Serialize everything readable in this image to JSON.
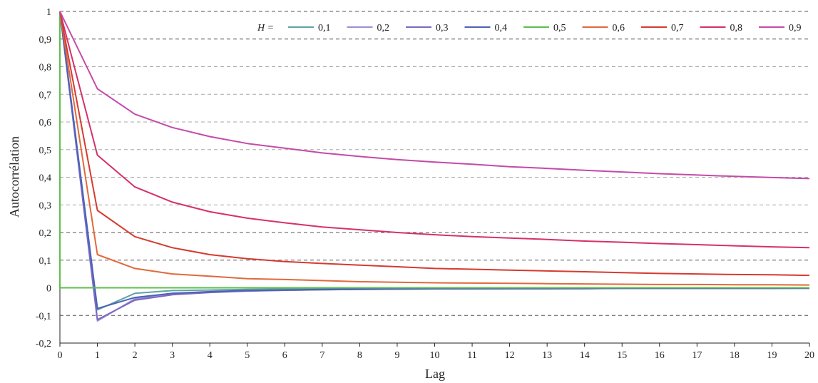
{
  "chart_data": {
    "type": "line",
    "title": "",
    "xlabel": "Lag",
    "ylabel": "Autocorrélation",
    "xlim": [
      0,
      20
    ],
    "ylim": [
      -0.2,
      1
    ],
    "x_ticks": [
      "0",
      "1",
      "2",
      "3",
      "4",
      "5",
      "6",
      "7",
      "8",
      "9",
      "10",
      "11",
      "12",
      "13",
      "14",
      "15",
      "16",
      "17",
      "18",
      "19",
      "20"
    ],
    "y_ticks": [
      "-0,2",
      "-0,1",
      "0",
      "0,1",
      "0,2",
      "0,3",
      "0,4",
      "0,5",
      "0,6",
      "0,7",
      "0,8",
      "0,9",
      "1"
    ],
    "grid": "horizontal dashed",
    "legend_position": "top-right",
    "legend_prefix": "H =",
    "x": [
      0,
      1,
      2,
      3,
      4,
      5,
      6,
      7,
      8,
      9,
      10,
      11,
      12,
      13,
      14,
      15,
      16,
      17,
      18,
      19,
      20
    ],
    "series": [
      {
        "name": "0,1",
        "color": "#5fa3a0",
        "values": [
          1,
          -0.08,
          -0.02,
          -0.01,
          -0.008,
          -0.006,
          -0.005,
          -0.004,
          -0.003,
          -0.003,
          -0.002,
          -0.002,
          -0.002,
          -0.002,
          -0.001,
          -0.001,
          -0.001,
          -0.001,
          -0.001,
          -0.001,
          -0.001
        ]
      },
      {
        "name": "0,2",
        "color": "#9b8fd6",
        "values": [
          1,
          -0.12,
          -0.04,
          -0.02,
          -0.015,
          -0.011,
          -0.009,
          -0.007,
          -0.006,
          -0.005,
          -0.004,
          -0.004,
          -0.003,
          -0.003,
          -0.003,
          -0.002,
          -0.002,
          -0.002,
          -0.002,
          -0.002,
          -0.002
        ]
      },
      {
        "name": "0,3",
        "color": "#7d68c2",
        "values": [
          1,
          -0.115,
          -0.045,
          -0.025,
          -0.017,
          -0.012,
          -0.009,
          -0.007,
          -0.006,
          -0.005,
          -0.004,
          -0.004,
          -0.003,
          -0.003,
          -0.003,
          -0.002,
          -0.002,
          -0.002,
          -0.002,
          -0.002,
          -0.002
        ]
      },
      {
        "name": "0,4",
        "color": "#4a62b8",
        "values": [
          1,
          -0.075,
          -0.035,
          -0.02,
          -0.014,
          -0.01,
          -0.008,
          -0.006,
          -0.005,
          -0.004,
          -0.004,
          -0.003,
          -0.003,
          -0.003,
          -0.002,
          -0.002,
          -0.002,
          -0.002,
          -0.002,
          -0.002,
          -0.001
        ]
      },
      {
        "name": "0,5",
        "color": "#5cbf4a",
        "values": [
          1,
          0,
          0,
          0,
          0,
          0,
          0,
          0,
          0,
          0,
          0,
          0,
          0,
          0,
          0,
          0,
          0,
          0,
          0,
          0,
          0
        ]
      },
      {
        "name": "0,6",
        "color": "#e2683b",
        "values": [
          1,
          0.12,
          0.07,
          0.05,
          0.042,
          0.033,
          0.03,
          0.026,
          0.022,
          0.02,
          0.018,
          0.017,
          0.016,
          0.015,
          0.014,
          0.013,
          0.012,
          0.012,
          0.011,
          0.011,
          0.01
        ]
      },
      {
        "name": "0,7",
        "color": "#d63a2f",
        "values": [
          1,
          0.28,
          0.185,
          0.145,
          0.12,
          0.105,
          0.095,
          0.088,
          0.082,
          0.076,
          0.07,
          0.067,
          0.064,
          0.061,
          0.058,
          0.055,
          0.052,
          0.05,
          0.048,
          0.047,
          0.045
        ]
      },
      {
        "name": "0,8",
        "color": "#d6306b",
        "values": [
          1,
          0.48,
          0.365,
          0.31,
          0.275,
          0.252,
          0.235,
          0.22,
          0.21,
          0.2,
          0.192,
          0.185,
          0.18,
          0.175,
          0.169,
          0.165,
          0.16,
          0.156,
          0.152,
          0.148,
          0.145
        ]
      },
      {
        "name": "0,9",
        "color": "#c44aa8",
        "values": [
          1,
          0.72,
          0.628,
          0.58,
          0.547,
          0.522,
          0.505,
          0.488,
          0.475,
          0.464,
          0.455,
          0.447,
          0.438,
          0.432,
          0.425,
          0.419,
          0.413,
          0.408,
          0.403,
          0.399,
          0.395
        ]
      }
    ]
  }
}
